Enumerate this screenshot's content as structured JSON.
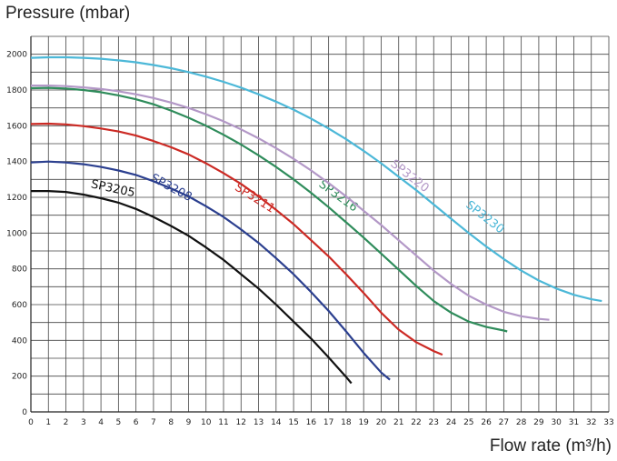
{
  "chart_data": {
    "type": "line",
    "title": "",
    "ylabel": "Pressure (mbar)",
    "xlabel": "Flow rate (m³/h)",
    "xlim": [
      0,
      33
    ],
    "ylim": [
      0,
      2100
    ],
    "xticks": [
      0,
      1,
      2,
      3,
      4,
      5,
      6,
      7,
      8,
      9,
      10,
      11,
      12,
      13,
      14,
      15,
      16,
      17,
      18,
      19,
      20,
      21,
      22,
      23,
      24,
      25,
      26,
      27,
      28,
      29,
      30,
      31,
      32,
      33
    ],
    "yticks": [
      0,
      200,
      400,
      600,
      800,
      1000,
      1200,
      1400,
      1600,
      1800,
      2000
    ],
    "grid": true,
    "legend": "none",
    "series": [
      {
        "name": "SP3205",
        "color": "#111111",
        "label_at": [
          3.4,
          1255
        ],
        "label_angle": 12,
        "points": [
          [
            0,
            1235
          ],
          [
            1,
            1235
          ],
          [
            2,
            1230
          ],
          [
            3,
            1215
          ],
          [
            4,
            1195
          ],
          [
            5,
            1170
          ],
          [
            6,
            1135
          ],
          [
            7,
            1090
          ],
          [
            8,
            1040
          ],
          [
            9,
            985
          ],
          [
            10,
            920
          ],
          [
            11,
            850
          ],
          [
            12,
            770
          ],
          [
            13,
            690
          ],
          [
            14,
            600
          ],
          [
            15,
            505
          ],
          [
            16,
            410
          ],
          [
            17,
            305
          ],
          [
            18,
            195
          ],
          [
            18.3,
            160
          ]
        ]
      },
      {
        "name": "SP3208",
        "color": "#2b3f8f",
        "label_at": [
          6.8,
          1295
        ],
        "label_angle": 28,
        "points": [
          [
            0,
            1395
          ],
          [
            1,
            1400
          ],
          [
            2,
            1395
          ],
          [
            3,
            1385
          ],
          [
            4,
            1370
          ],
          [
            5,
            1350
          ],
          [
            6,
            1325
          ],
          [
            7,
            1290
          ],
          [
            8,
            1250
          ],
          [
            9,
            1205
          ],
          [
            10,
            1150
          ],
          [
            11,
            1090
          ],
          [
            12,
            1020
          ],
          [
            13,
            945
          ],
          [
            14,
            860
          ],
          [
            15,
            770
          ],
          [
            16,
            670
          ],
          [
            17,
            565
          ],
          [
            18,
            450
          ],
          [
            19,
            330
          ],
          [
            20,
            220
          ],
          [
            20.5,
            180
          ]
        ]
      },
      {
        "name": "SP3211",
        "color": "#cc2a24",
        "label_at": [
          11.6,
          1245
        ],
        "label_angle": 32,
        "points": [
          [
            0,
            1610
          ],
          [
            1,
            1612
          ],
          [
            2,
            1608
          ],
          [
            3,
            1598
          ],
          [
            4,
            1585
          ],
          [
            5,
            1568
          ],
          [
            6,
            1545
          ],
          [
            7,
            1515
          ],
          [
            8,
            1480
          ],
          [
            9,
            1440
          ],
          [
            10,
            1390
          ],
          [
            11,
            1335
          ],
          [
            12,
            1275
          ],
          [
            13,
            1205
          ],
          [
            14,
            1130
          ],
          [
            15,
            1050
          ],
          [
            16,
            960
          ],
          [
            17,
            870
          ],
          [
            18,
            770
          ],
          [
            19,
            665
          ],
          [
            20,
            555
          ],
          [
            21,
            460
          ],
          [
            22,
            390
          ],
          [
            23,
            340
          ],
          [
            23.5,
            320
          ]
        ]
      },
      {
        "name": "SP3216",
        "color": "#2f8c5b",
        "label_at": [
          16.4,
          1265
        ],
        "label_angle": 36,
        "points": [
          [
            0,
            1810
          ],
          [
            1,
            1812
          ],
          [
            2,
            1808
          ],
          [
            3,
            1800
          ],
          [
            4,
            1788
          ],
          [
            5,
            1770
          ],
          [
            6,
            1748
          ],
          [
            7,
            1720
          ],
          [
            8,
            1685
          ],
          [
            9,
            1645
          ],
          [
            10,
            1600
          ],
          [
            11,
            1550
          ],
          [
            12,
            1495
          ],
          [
            13,
            1435
          ],
          [
            14,
            1370
          ],
          [
            15,
            1300
          ],
          [
            16,
            1225
          ],
          [
            17,
            1145
          ],
          [
            18,
            1060
          ],
          [
            19,
            975
          ],
          [
            20,
            885
          ],
          [
            21,
            795
          ],
          [
            22,
            705
          ],
          [
            23,
            620
          ],
          [
            24,
            555
          ],
          [
            25,
            505
          ],
          [
            26,
            475
          ],
          [
            27,
            455
          ],
          [
            27.2,
            450
          ]
        ]
      },
      {
        "name": "SP3220",
        "color": "#b398c7",
        "label_at": [
          20.5,
          1380
        ],
        "label_angle": 38,
        "points": [
          [
            0,
            1825
          ],
          [
            1,
            1825
          ],
          [
            2,
            1822
          ],
          [
            3,
            1815
          ],
          [
            4,
            1806
          ],
          [
            5,
            1793
          ],
          [
            6,
            1776
          ],
          [
            7,
            1755
          ],
          [
            8,
            1730
          ],
          [
            9,
            1700
          ],
          [
            10,
            1665
          ],
          [
            11,
            1625
          ],
          [
            12,
            1580
          ],
          [
            13,
            1530
          ],
          [
            14,
            1475
          ],
          [
            15,
            1415
          ],
          [
            16,
            1350
          ],
          [
            17,
            1280
          ],
          [
            18,
            1205
          ],
          [
            19,
            1125
          ],
          [
            20,
            1045
          ],
          [
            21,
            960
          ],
          [
            22,
            875
          ],
          [
            23,
            790
          ],
          [
            24,
            715
          ],
          [
            25,
            650
          ],
          [
            26,
            600
          ],
          [
            27,
            560
          ],
          [
            28,
            535
          ],
          [
            29,
            520
          ],
          [
            29.6,
            515
          ]
        ]
      },
      {
        "name": "SP3230",
        "color": "#4cb8d8",
        "label_at": [
          24.8,
          1150
        ],
        "label_angle": 38,
        "points": [
          [
            0,
            1980
          ],
          [
            1,
            1983
          ],
          [
            2,
            1983
          ],
          [
            3,
            1980
          ],
          [
            4,
            1975
          ],
          [
            5,
            1966
          ],
          [
            6,
            1955
          ],
          [
            7,
            1940
          ],
          [
            8,
            1922
          ],
          [
            9,
            1900
          ],
          [
            10,
            1875
          ],
          [
            11,
            1846
          ],
          [
            12,
            1813
          ],
          [
            13,
            1776
          ],
          [
            14,
            1735
          ],
          [
            15,
            1690
          ],
          [
            16,
            1640
          ],
          [
            17,
            1585
          ],
          [
            18,
            1525
          ],
          [
            19,
            1460
          ],
          [
            20,
            1390
          ],
          [
            21,
            1315
          ],
          [
            22,
            1240
          ],
          [
            23,
            1160
          ],
          [
            24,
            1080
          ],
          [
            25,
            1000
          ],
          [
            26,
            925
          ],
          [
            27,
            855
          ],
          [
            28,
            790
          ],
          [
            29,
            735
          ],
          [
            30,
            690
          ],
          [
            31,
            655
          ],
          [
            32,
            630
          ],
          [
            32.6,
            620
          ]
        ]
      }
    ]
  }
}
